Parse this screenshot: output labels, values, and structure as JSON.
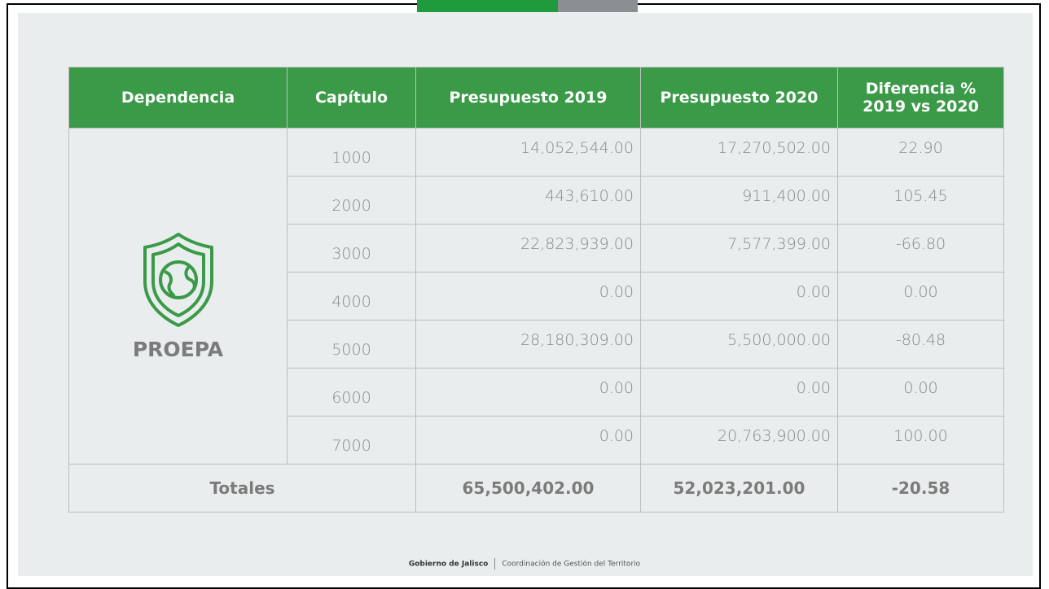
{
  "table": {
    "header": [
      "Dependencia",
      "Capítulo",
      "Presupuesto 2019",
      "Presupuesto 2020",
      "Diferencia % 2019 vs 2020"
    ],
    "dependencia": "PROEPA",
    "rows": [
      [
        "1000",
        "14,052,544.00",
        "17,270,502.00",
        "22.90"
      ],
      [
        "2000",
        "443,610.00",
        "911,400.00",
        "105.45"
      ],
      [
        "3000",
        "22,823,939.00",
        "7,577,399.00",
        "-66.80"
      ],
      [
        "4000",
        "0.00",
        "0.00",
        "0.00"
      ],
      [
        "5000",
        "28,180,309.00",
        "5,500,000.00",
        "-80.48"
      ],
      [
        "6000",
        "0.00",
        "0.00",
        "0.00"
      ],
      [
        "7000",
        "0.00",
        "20,763,900.00",
        "100.00"
      ]
    ],
    "totals": {
      "label": "Totales",
      "values": [
        "65,500,402.00",
        "52,023,201.00",
        "-20.58"
      ]
    }
  },
  "footer": {
    "org": "Gobierno de Jalisco",
    "unit": "Coordinación de Gestión del Territorio"
  }
}
